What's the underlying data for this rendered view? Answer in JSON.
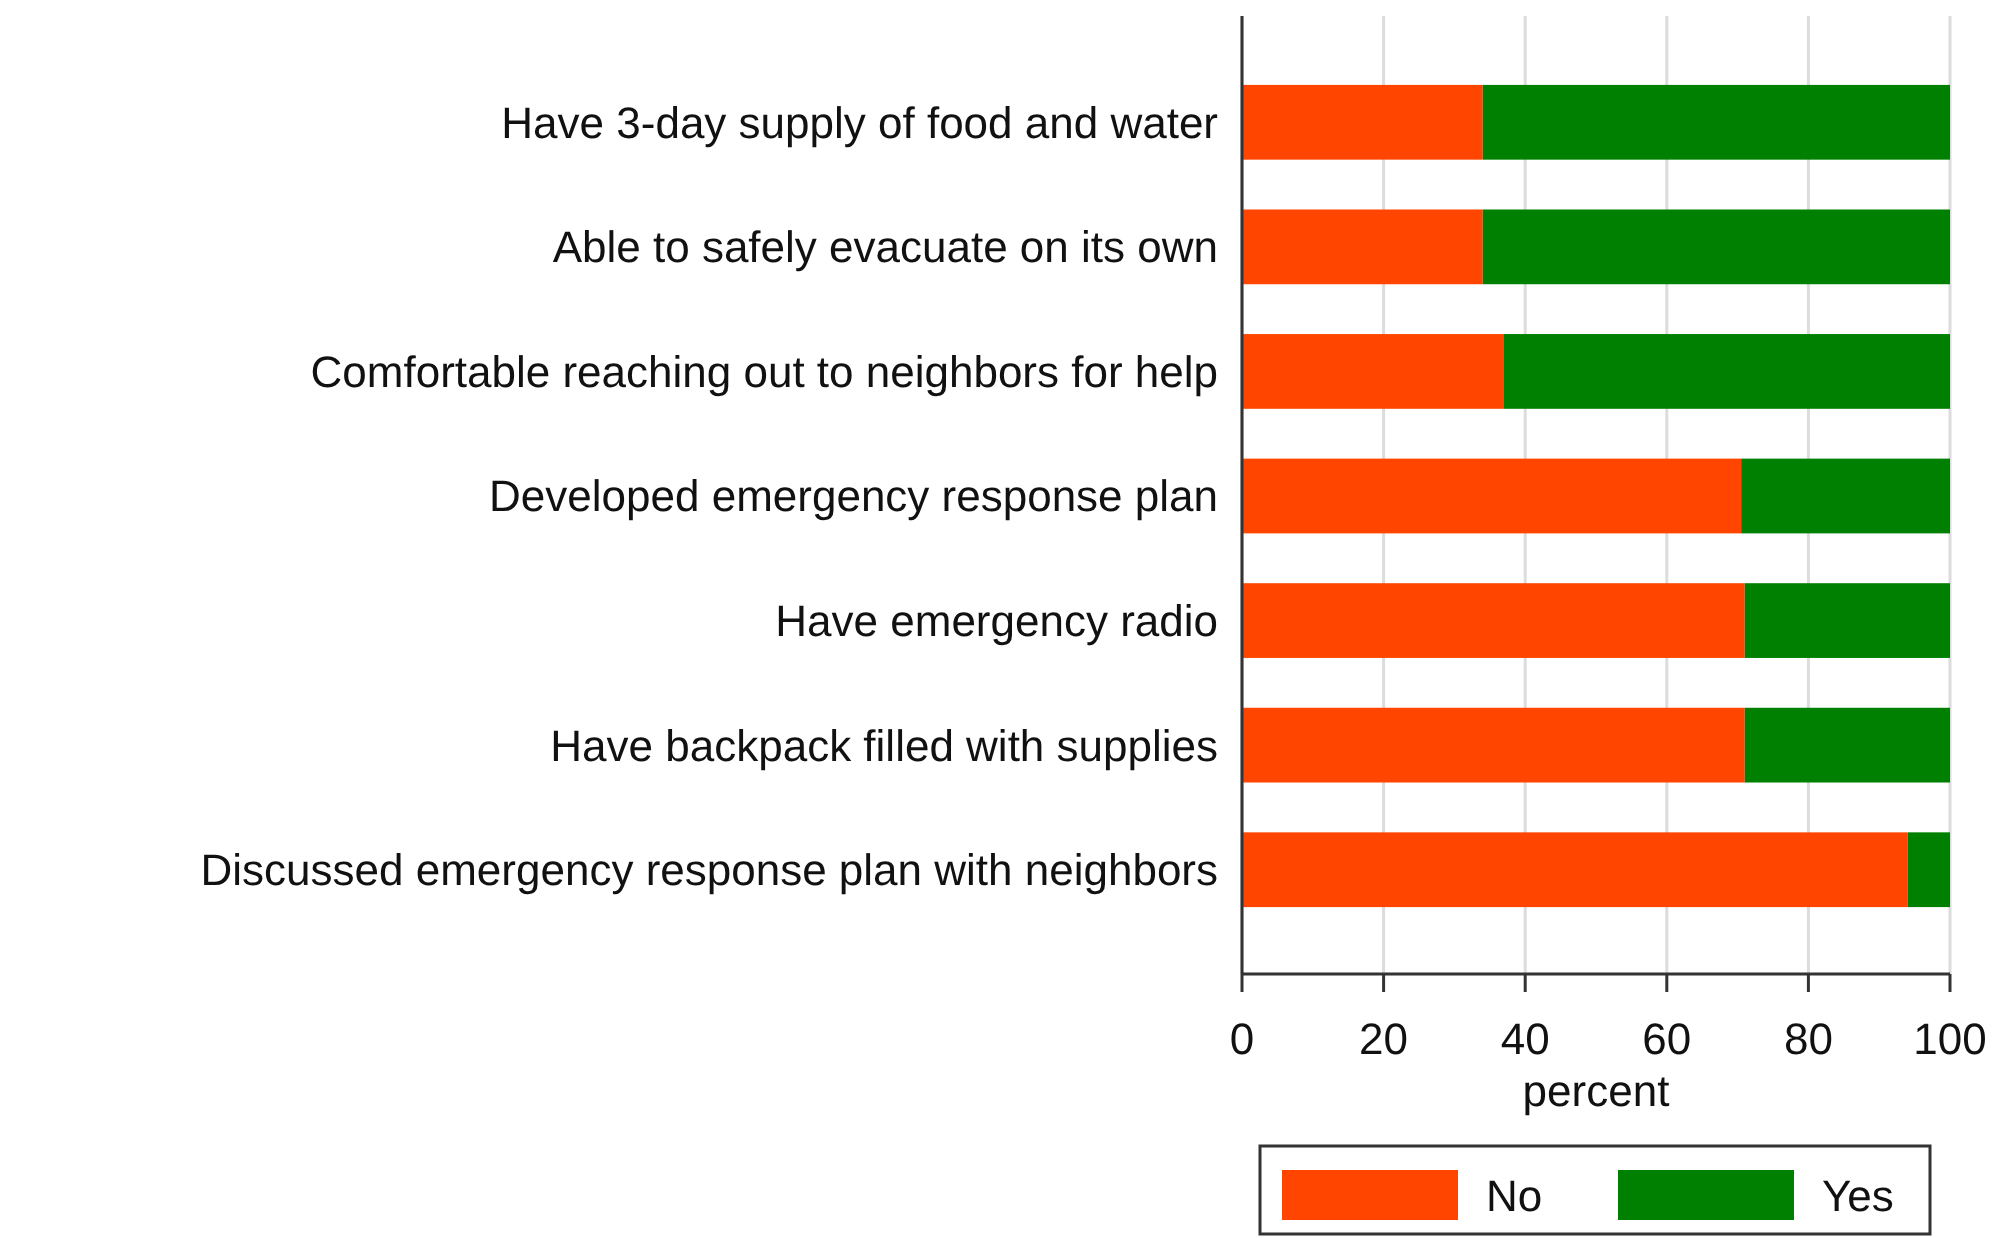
{
  "chart_data": {
    "type": "bar",
    "orientation": "horizontal",
    "stacked": true,
    "categories": [
      "Have 3-day supply of food and water",
      "Able to safely evacuate on its own",
      "Comfortable reaching out to neighbors for help",
      "Developed emergency response plan",
      "Have emergency radio",
      "Have backpack filled with supplies",
      "Discussed emergency response plan with neighbors"
    ],
    "series": [
      {
        "name": "No",
        "color": "#ff4500",
        "values": [
          34,
          34,
          37,
          70.5,
          71,
          71,
          94
        ]
      },
      {
        "name": "Yes",
        "color": "#008000",
        "values": [
          66,
          66,
          63,
          29.5,
          29,
          29,
          6
        ]
      }
    ],
    "xlabel": "percent",
    "xlim": [
      0,
      100
    ],
    "xticks": [
      0,
      20,
      40,
      60,
      80,
      100
    ],
    "grid": "x",
    "legend": "bottom"
  }
}
